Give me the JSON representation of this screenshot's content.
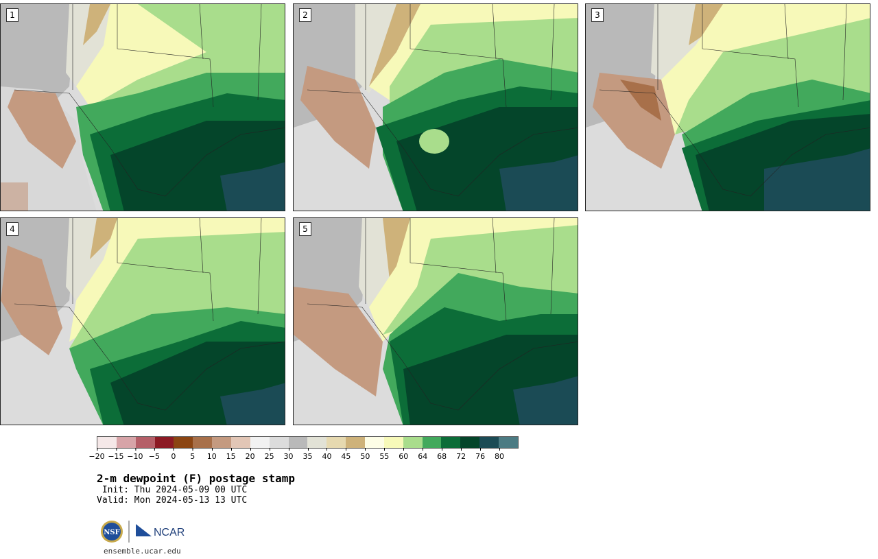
{
  "panels": [
    {
      "label": "1"
    },
    {
      "label": "2"
    },
    {
      "label": "3"
    },
    {
      "label": "4"
    },
    {
      "label": "5"
    }
  ],
  "colorbar": {
    "ticks": [
      "−20",
      "−15",
      "−10",
      "−5",
      "0",
      "5",
      "10",
      "15",
      "20",
      "25",
      "30",
      "35",
      "40",
      "45",
      "50",
      "55",
      "60",
      "64",
      "68",
      "72",
      "76",
      "80"
    ],
    "colors": [
      "#f5e8e8",
      "#d7a4a8",
      "#b55f68",
      "#8c1a24",
      "#8b4513",
      "#a8704a",
      "#c49a80",
      "#e2c6b6",
      "#f2f2f2",
      "#dcdcdc",
      "#b9b9b9",
      "#e2e2d6",
      "#e6d9b0",
      "#ceb27a",
      "#fdfde6",
      "#f7f9b9",
      "#a9dd8c",
      "#42a95c",
      "#0c6d38",
      "#04452a",
      "#1b4b55",
      "#4c7b83"
    ]
  },
  "title": "2-m dewpoint (F) postage stamp",
  "init": " Init: Thu 2024-05-09 00 UTC",
  "valid": "Valid: Mon 2024-05-13 13 UTC",
  "logos": {
    "nsf": "NSF",
    "ncar": "NCAR"
  },
  "site": "ensemble.ucar.edu"
}
